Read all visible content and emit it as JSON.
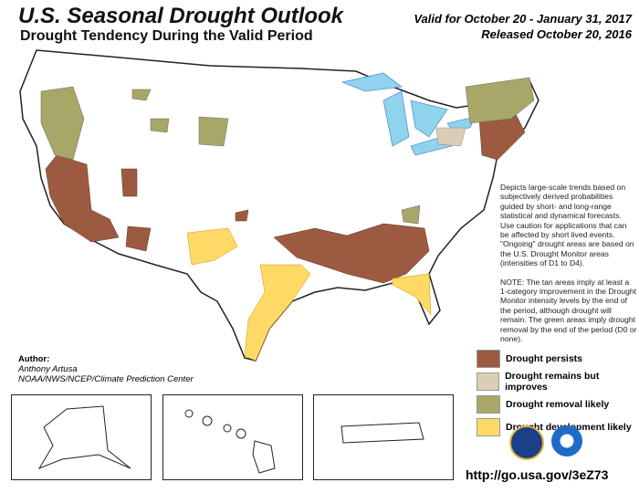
{
  "header": {
    "title": "U.S. Seasonal Drought Outlook",
    "subtitle": "Drought Tendency During the Valid Period",
    "valid_for": "Valid for October 20 - January 31, 2017",
    "released": "Released October 20, 2016"
  },
  "description": [
    "Depicts large-scale trends based on subjectively derived probabilities guided by short- and long-range statistical and dynamical forecasts. Use caution for applications that can be affected by short lived events. \"Ongoing\" drought areas are based on the U.S. Drought Monitor areas (intensities of D1 to D4).",
    "NOTE: The tan areas imply at least a 1-category improvement in the Drought Monitor intensity levels by the end of the period, although drought will remain. The green areas imply drought removal by the end of the period (D0 or none)."
  ],
  "author": {
    "label": "Author:",
    "name": "Anthony Artusa",
    "org": "NOAA/NWS/NCEP/Climate Prediction Center"
  },
  "legend": [
    {
      "label": "Drought persists",
      "color": "#9c5b40"
    },
    {
      "label": "Drought remains but improves",
      "color": "#dccdb6"
    },
    {
      "label": "Drought removal likely",
      "color": "#a9a767"
    },
    {
      "label": "Drought development likely",
      "color": "#ffd966"
    }
  ],
  "colors": {
    "water": "#8fd3ec",
    "land": "#ffffff",
    "border": "#222222"
  },
  "insets": [
    "Alaska",
    "Hawaii",
    "Puerto Rico"
  ],
  "logos": [
    "doc-seal-icon",
    "noaa-logo-icon"
  ],
  "url": "http://go.usa.gov/3eZ73"
}
